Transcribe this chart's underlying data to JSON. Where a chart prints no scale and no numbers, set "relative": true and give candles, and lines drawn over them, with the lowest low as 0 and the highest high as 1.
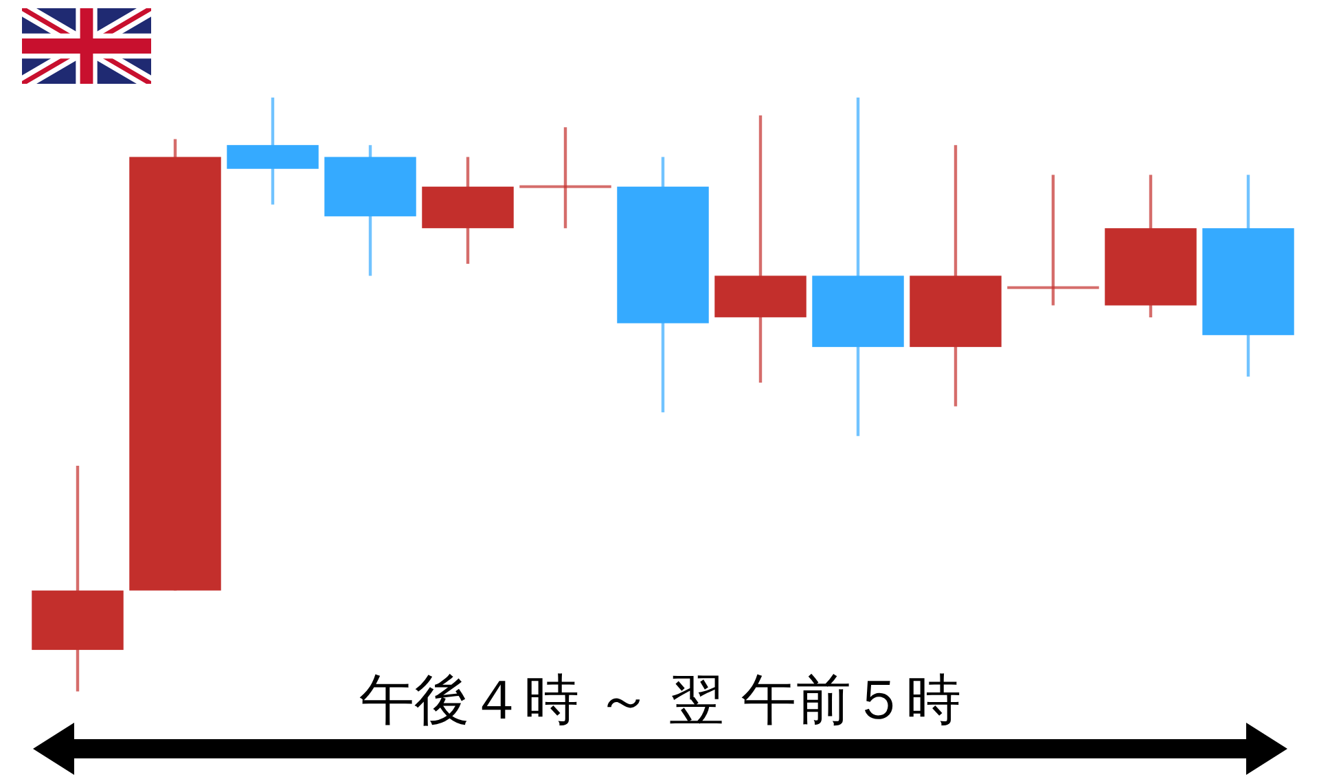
{
  "chart_data": {
    "type": "candlestick",
    "relative": true,
    "xlabel": "午後４時 ～ 翌 午前５時",
    "categories": [
      null,
      null,
      null,
      null,
      null,
      null,
      null,
      null,
      null,
      null,
      null,
      null,
      null
    ],
    "ohlc": [
      [
        0.07,
        0.38,
        0,
        0.17
      ],
      [
        0.17,
        0.93,
        0.17,
        0.9
      ],
      [
        0.92,
        1,
        0.82,
        0.88
      ],
      [
        0.9,
        0.92,
        0.7,
        0.8
      ],
      [
        0.78,
        0.9,
        0.72,
        0.85
      ],
      [
        0.85,
        0.95,
        0.78,
        0.85
      ],
      [
        0.85,
        0.9,
        0.47,
        0.62
      ],
      [
        0.63,
        0.97,
        0.52,
        0.7
      ],
      [
        0.7,
        1,
        0.43,
        0.58
      ],
      [
        0.58,
        0.92,
        0.48,
        0.7
      ],
      [
        0.68,
        0.87,
        0.65,
        0.68
      ],
      [
        0.65,
        0.87,
        0.63,
        0.78
      ],
      [
        0.78,
        0.87,
        0.53,
        0.6
      ]
    ],
    "colors": [
      "#c32f2c",
      "#c32f2c",
      "#35aaff",
      "#35aaff",
      "#c32f2c",
      "#c32f2c",
      "#35aaff",
      "#c32f2c",
      "#35aaff",
      "#c32f2c",
      "#c32f2c",
      "#c32f2c",
      "#35aaff"
    ]
  }
}
